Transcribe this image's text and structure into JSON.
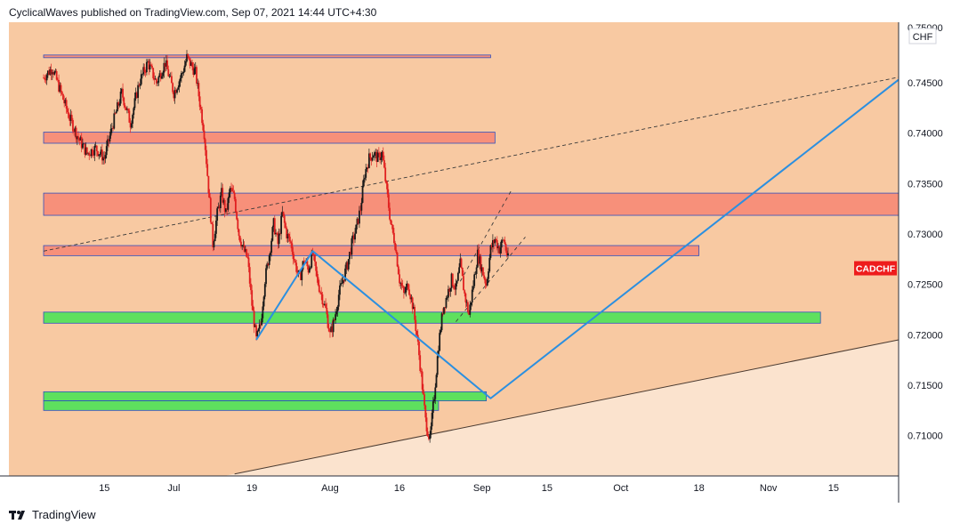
{
  "header": {
    "author": "CyclicalWaves",
    "published_on": "published on TradingView.com, Sep 07, 2021 14:44 UTC+4:30"
  },
  "footer": {
    "brand": "TradingView"
  },
  "colors": {
    "bg_dark": "#f8c9a2",
    "bg_light": "#fbe3ce",
    "resistance_zone": "#f7907a",
    "support_zone": "#5ee05e",
    "zone_border": "#2f4fbf",
    "candle": "#1a1a1a",
    "candle_down": "#e02020",
    "projection": "#2b8fe0",
    "tag": "#ee1c1c"
  },
  "chart_data": {
    "type": "candlestick",
    "symbol": "CADCHF",
    "currency_label": "CHF",
    "ylim": [
      0.706,
      0.751
    ],
    "price_ticks": [
      "0.74500",
      "0.74000",
      "0.73500",
      "0.73000",
      "0.72500",
      "0.72000",
      "0.71500",
      "0.71000"
    ],
    "top_tick_partial": "0.75000",
    "x_tick_labels": [
      {
        "label": "15",
        "day": 22
      },
      {
        "label": "Jul",
        "day": 38
      },
      {
        "label": "19",
        "day": 56
      },
      {
        "label": "Aug",
        "day": 74
      },
      {
        "label": "16",
        "day": 90
      },
      {
        "label": "Sep",
        "day": 109
      },
      {
        "label": "15",
        "day": 124
      },
      {
        "label": "Oct",
        "day": 141
      },
      {
        "label": "18",
        "day": 159
      },
      {
        "label": "Nov",
        "day": 175
      },
      {
        "label": "15",
        "day": 190
      }
    ],
    "price_path": [
      {
        "day": 8,
        "price": 0.7455
      },
      {
        "day": 10,
        "price": 0.7465
      },
      {
        "day": 12,
        "price": 0.744
      },
      {
        "day": 14,
        "price": 0.7415
      },
      {
        "day": 16,
        "price": 0.7395
      },
      {
        "day": 18,
        "price": 0.738
      },
      {
        "day": 20,
        "price": 0.7385
      },
      {
        "day": 22,
        "price": 0.7375
      },
      {
        "day": 24,
        "price": 0.741
      },
      {
        "day": 26,
        "price": 0.744
      },
      {
        "day": 28,
        "price": 0.741
      },
      {
        "day": 30,
        "price": 0.745
      },
      {
        "day": 32,
        "price": 0.747
      },
      {
        "day": 34,
        "price": 0.745
      },
      {
        "day": 36,
        "price": 0.747
      },
      {
        "day": 38,
        "price": 0.744
      },
      {
        "day": 40,
        "price": 0.746
      },
      {
        "day": 41,
        "price": 0.7475
      },
      {
        "day": 43,
        "price": 0.746
      },
      {
        "day": 44,
        "price": 0.743
      },
      {
        "day": 45,
        "price": 0.74
      },
      {
        "day": 46,
        "price": 0.7345
      },
      {
        "day": 47,
        "price": 0.729
      },
      {
        "day": 48,
        "price": 0.732
      },
      {
        "day": 49,
        "price": 0.734
      },
      {
        "day": 50,
        "price": 0.732
      },
      {
        "day": 51,
        "price": 0.7345
      },
      {
        "day": 52,
        "price": 0.7335
      },
      {
        "day": 53,
        "price": 0.73
      },
      {
        "day": 54,
        "price": 0.7285
      },
      {
        "day": 55,
        "price": 0.7275
      },
      {
        "day": 56,
        "price": 0.723
      },
      {
        "day": 57,
        "price": 0.7195
      },
      {
        "day": 58,
        "price": 0.721
      },
      {
        "day": 59,
        "price": 0.7255
      },
      {
        "day": 60,
        "price": 0.728
      },
      {
        "day": 61,
        "price": 0.731
      },
      {
        "day": 62,
        "price": 0.729
      },
      {
        "day": 63,
        "price": 0.732
      },
      {
        "day": 64,
        "price": 0.73
      },
      {
        "day": 65,
        "price": 0.729
      },
      {
        "day": 66,
        "price": 0.727
      },
      {
        "day": 67,
        "price": 0.7255
      },
      {
        "day": 68,
        "price": 0.7275
      },
      {
        "day": 69,
        "price": 0.7265
      },
      {
        "day": 70,
        "price": 0.728
      },
      {
        "day": 71,
        "price": 0.7255
      },
      {
        "day": 72,
        "price": 0.724
      },
      {
        "day": 73,
        "price": 0.7225
      },
      {
        "day": 74,
        "price": 0.72
      },
      {
        "day": 75,
        "price": 0.7215
      },
      {
        "day": 76,
        "price": 0.724
      },
      {
        "day": 77,
        "price": 0.7255
      },
      {
        "day": 78,
        "price": 0.727
      },
      {
        "day": 79,
        "price": 0.729
      },
      {
        "day": 80,
        "price": 0.7305
      },
      {
        "day": 81,
        "price": 0.7325
      },
      {
        "day": 82,
        "price": 0.736
      },
      {
        "day": 83,
        "price": 0.7375
      },
      {
        "day": 84,
        "price": 0.738
      },
      {
        "day": 85,
        "price": 0.7375
      },
      {
        "day": 86,
        "price": 0.738
      },
      {
        "day": 87,
        "price": 0.7345
      },
      {
        "day": 88,
        "price": 0.731
      },
      {
        "day": 89,
        "price": 0.729
      },
      {
        "day": 90,
        "price": 0.7255
      },
      {
        "day": 91,
        "price": 0.724
      },
      {
        "day": 92,
        "price": 0.725
      },
      {
        "day": 93,
        "price": 0.723
      },
      {
        "day": 94,
        "price": 0.72
      },
      {
        "day": 95,
        "price": 0.716
      },
      {
        "day": 96,
        "price": 0.7115
      },
      {
        "day": 97,
        "price": 0.7095
      },
      {
        "day": 98,
        "price": 0.714
      },
      {
        "day": 99,
        "price": 0.719
      },
      {
        "day": 100,
        "price": 0.7225
      },
      {
        "day": 101,
        "price": 0.724
      },
      {
        "day": 102,
        "price": 0.7255
      },
      {
        "day": 103,
        "price": 0.7245
      },
      {
        "day": 104,
        "price": 0.727
      },
      {
        "day": 105,
        "price": 0.724
      },
      {
        "day": 106,
        "price": 0.722
      },
      {
        "day": 107,
        "price": 0.725
      },
      {
        "day": 108,
        "price": 0.728
      },
      {
        "day": 109,
        "price": 0.7265
      },
      {
        "day": 110,
        "price": 0.725
      },
      {
        "day": 111,
        "price": 0.7285
      },
      {
        "day": 112,
        "price": 0.7295
      },
      {
        "day": 113,
        "price": 0.7285
      },
      {
        "day": 114,
        "price": 0.7295
      },
      {
        "day": 115,
        "price": 0.7275
      }
    ],
    "zones": [
      {
        "kind": "resistance",
        "top": 0.74775,
        "bottom": 0.7475,
        "start_day": 8,
        "end_day": 111
      },
      {
        "kind": "resistance",
        "top": 0.7401,
        "bottom": 0.739,
        "start_day": 8,
        "end_day": 112
      },
      {
        "kind": "resistance",
        "top": 0.73405,
        "bottom": 0.73185,
        "start_day": 8,
        "end_day": 205
      },
      {
        "kind": "resistance",
        "top": 0.72885,
        "bottom": 0.72785,
        "start_day": 8,
        "end_day": 159
      },
      {
        "kind": "support",
        "top": 0.72225,
        "bottom": 0.72115,
        "start_day": 8,
        "end_day": 187
      },
      {
        "kind": "support",
        "top": 0.71435,
        "bottom": 0.71345,
        "start_day": 8,
        "end_day": 110
      },
      {
        "kind": "support",
        "top": 0.71345,
        "bottom": 0.7125,
        "start_day": 8,
        "end_day": 99
      }
    ],
    "trendlines": [
      {
        "style": "dashed",
        "from": {
          "day": 8,
          "price": 0.7283
        },
        "to": {
          "day": 205,
          "price": 0.74555
        }
      },
      {
        "style": "solid",
        "from": {
          "day": 52,
          "price": 0.7062
        },
        "to": {
          "day": 205,
          "price": 0.7195
        }
      },
      {
        "style": "dashed-thin",
        "from": {
          "day": 103,
          "price": 0.7213
        },
        "to": {
          "day": 119,
          "price": 0.7297
        }
      },
      {
        "style": "dashed-thin",
        "from": {
          "day": 104,
          "price": 0.7253
        },
        "to": {
          "day": 116,
          "price": 0.7345
        }
      }
    ],
    "projection_path": [
      {
        "day": 57,
        "price": 0.7195
      },
      {
        "day": 70,
        "price": 0.7283
      },
      {
        "day": 111,
        "price": 0.7137
      },
      {
        "day": 205,
        "price": 0.7453
      }
    ],
    "current_price_tag": {
      "label": "CADCHF",
      "price": 0.7266
    }
  }
}
